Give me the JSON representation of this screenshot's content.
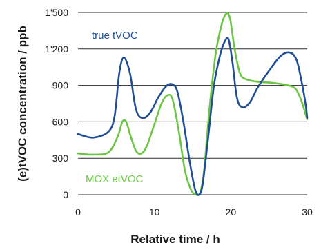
{
  "chart_data": {
    "type": "line",
    "xlabel": "Relative time / h",
    "ylabel": "(e)tVOC concentration / ppb",
    "xlim": [
      0,
      30
    ],
    "ylim": [
      0,
      1500
    ],
    "xticks": [
      "0",
      "10",
      "20",
      "30"
    ],
    "xtick_values": [
      0,
      10,
      20,
      30
    ],
    "yticks": [
      "0",
      "300",
      "600",
      "900",
      "1'200",
      "1'500"
    ],
    "ytick_values": [
      0,
      300,
      600,
      900,
      1200,
      1500
    ],
    "grid": "horizontal",
    "legend": "inline labels",
    "series": [
      {
        "name": "true tVOC",
        "color": "#1f4e96",
        "x": [
          0,
          2,
          4,
          4.8,
          5.4,
          6.0,
          6.8,
          7.6,
          8.5,
          9.5,
          10.5,
          11.5,
          12.3,
          13.0,
          13.8,
          14.6,
          15.3,
          15.8,
          16.3,
          17.0,
          17.8,
          18.6,
          19.2,
          19.7,
          20.2,
          20.8,
          21.5,
          22.5,
          23.5,
          25.0,
          26.5,
          27.7,
          28.6,
          29.3,
          29.8,
          30.0
        ],
        "y": [
          500,
          470,
          520,
          650,
          1000,
          1130,
          1000,
          700,
          630,
          680,
          800,
          890,
          910,
          850,
          600,
          280,
          50,
          0,
          80,
          450,
          900,
          1150,
          1260,
          1280,
          1100,
          800,
          720,
          760,
          880,
          1020,
          1140,
          1170,
          1110,
          920,
          740,
          630
        ]
      },
      {
        "name": "MOX etVOC",
        "color": "#6cc644",
        "x": [
          0,
          2,
          4,
          5.2,
          5.8,
          6.3,
          6.9,
          7.6,
          8.3,
          9.0,
          10.0,
          11.0,
          11.8,
          12.4,
          13.2,
          14.0,
          14.8,
          15.5,
          16.0,
          16.5,
          17.2,
          18.0,
          18.8,
          19.4,
          19.9,
          20.5,
          21.2,
          22.0,
          23.5,
          25.5,
          27.5,
          28.5,
          29.2,
          29.7,
          30.0
        ],
        "y": [
          340,
          330,
          350,
          480,
          600,
          600,
          480,
          360,
          340,
          400,
          580,
          760,
          820,
          780,
          520,
          200,
          40,
          0,
          20,
          200,
          700,
          1150,
          1400,
          1490,
          1450,
          1200,
          1000,
          950,
          930,
          920,
          900,
          870,
          780,
          680,
          620
        ]
      }
    ]
  }
}
